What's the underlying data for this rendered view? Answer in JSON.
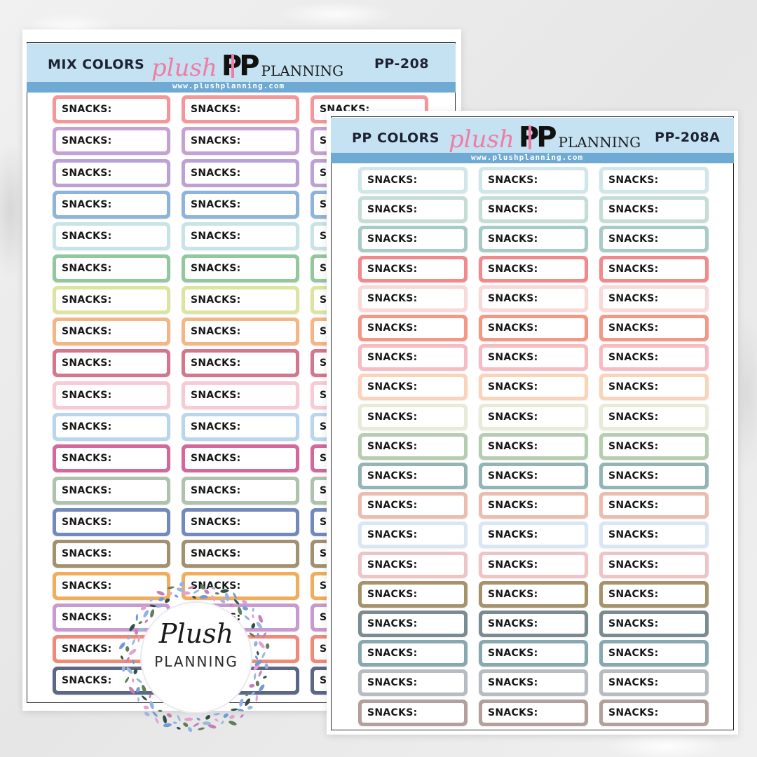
{
  "sheets": [
    {
      "code_label": "MIX COLORS",
      "logo_plush": "plush",
      "logo_pp": "PP",
      "logo_planning": "PLANNING",
      "sku": "PP-208",
      "url": "www.plushplanning.com",
      "sticker_label": "SNACKS:",
      "columns": 3,
      "colors": [
        "#f4979a",
        "#c6a1d3",
        "#bba2d6",
        "#8fb4dc",
        "#c8e4e6",
        "#93c79d",
        "#dde4a0",
        "#f6b585",
        "#d5768d",
        "#f9cad5",
        "#b8d7ef",
        "#d4679b",
        "#aec3ae",
        "#7389bd",
        "#a2916e",
        "#f0ad5b",
        "#c89ad2",
        "#f08a78",
        "#5c6685"
      ]
    },
    {
      "code_label": "PP COLORS",
      "logo_plush": "plush",
      "logo_pp": "PP",
      "logo_planning": "PLANNING",
      "sku": "PP-208A",
      "url": "www.plushplanning.com",
      "sticker_label": "SNACKS:",
      "columns": 3,
      "colors": [
        "#cfe6ea",
        "#c4ddd6",
        "#a9cbc8",
        "#f2898d",
        "#f8d9d7",
        "#f59883",
        "#f7bcc3",
        "#fbd3b9",
        "#e7ecd9",
        "#b5cdb0",
        "#93b5b5",
        "#ebbdaf",
        "#dbe6f4",
        "#efc4c7",
        "#a6936c",
        "#7b8b92",
        "#86a8ae",
        "#b7bbc2",
        "#b39f9c"
      ]
    }
  ],
  "badge": {
    "line1": "Plush",
    "line2": "PLANNING"
  }
}
